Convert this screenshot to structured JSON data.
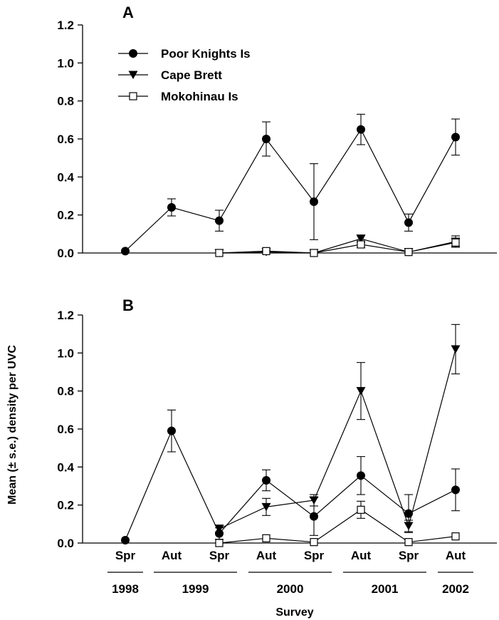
{
  "chart_data": [
    {
      "type": "line",
      "panel_label": "A",
      "ylim": [
        0,
        1.2
      ],
      "yticks": [
        "0.0",
        "0.2",
        "0.4",
        "0.6",
        "0.8",
        "1.0",
        "1.2"
      ],
      "x": [
        "Spr 1998",
        "Aut 1999",
        "Spr 1999",
        "Aut 2000",
        "Spr 2000",
        "Aut 2001",
        "Spr 2001",
        "Aut 2002"
      ],
      "legend_position": "top-left",
      "series": [
        {
          "name": "Poor Knights Is",
          "marker": "filled-circle",
          "values": [
            0.01,
            0.24,
            0.17,
            0.6,
            0.27,
            0.65,
            0.16,
            0.61
          ],
          "errors": [
            0.0,
            0.045,
            0.055,
            0.09,
            0.2,
            0.08,
            0.045,
            0.095
          ]
        },
        {
          "name": "Cape Brett",
          "marker": "filled-triangle-down",
          "values": [
            null,
            null,
            0.0,
            0.005,
            0.0,
            0.075,
            0.005,
            0.06
          ],
          "errors": [
            null,
            null,
            0.0,
            0.005,
            0.0,
            0.02,
            0.005,
            0.03
          ]
        },
        {
          "name": "Mokohinau Is",
          "marker": "open-square",
          "values": [
            null,
            null,
            0.0,
            0.01,
            0.0,
            0.045,
            0.005,
            0.055
          ],
          "errors": [
            null,
            null,
            0.0,
            0.005,
            0.0,
            0.015,
            0.0,
            0.02
          ]
        }
      ]
    },
    {
      "type": "line",
      "panel_label": "B",
      "ylim": [
        0,
        1.2
      ],
      "yticks": [
        "0.0",
        "0.2",
        "0.4",
        "0.6",
        "0.8",
        "1.0",
        "1.2"
      ],
      "x": [
        "Spr 1998",
        "Aut 1999",
        "Spr 1999",
        "Aut 2000",
        "Spr 2000",
        "Aut 2001",
        "Spr 2001",
        "Aut 2002"
      ],
      "series": [
        {
          "name": "Poor Knights Is",
          "marker": "filled-circle",
          "values": [
            0.015,
            0.59,
            0.05,
            0.33,
            0.14,
            0.355,
            0.155,
            0.28
          ],
          "errors": [
            0.0,
            0.11,
            0.03,
            0.055,
            0.1,
            0.1,
            0.1,
            0.11
          ]
        },
        {
          "name": "Cape Brett",
          "marker": "filled-triangle-down",
          "values": [
            null,
            null,
            0.075,
            0.19,
            0.225,
            0.8,
            0.09,
            1.02
          ],
          "errors": [
            null,
            null,
            0.02,
            0.045,
            0.03,
            0.15,
            0.03,
            0.13
          ]
        },
        {
          "name": "Mokohinau Is",
          "marker": "open-square",
          "values": [
            null,
            null,
            0.0,
            0.025,
            0.005,
            0.175,
            0.005,
            0.035
          ],
          "errors": [
            null,
            null,
            0.0,
            0.0,
            0.0,
            0.045,
            0.0,
            0.0
          ]
        }
      ]
    }
  ],
  "x_categories": [
    "Spr",
    "Aut",
    "Spr",
    "Aut",
    "Spr",
    "Aut",
    "Spr",
    "Aut"
  ],
  "years": [
    "1998",
    "1999",
    "2000",
    "2001",
    "2002"
  ],
  "ylabel": "Mean (± s.e.) density per UVC",
  "xlabel": "Survey"
}
